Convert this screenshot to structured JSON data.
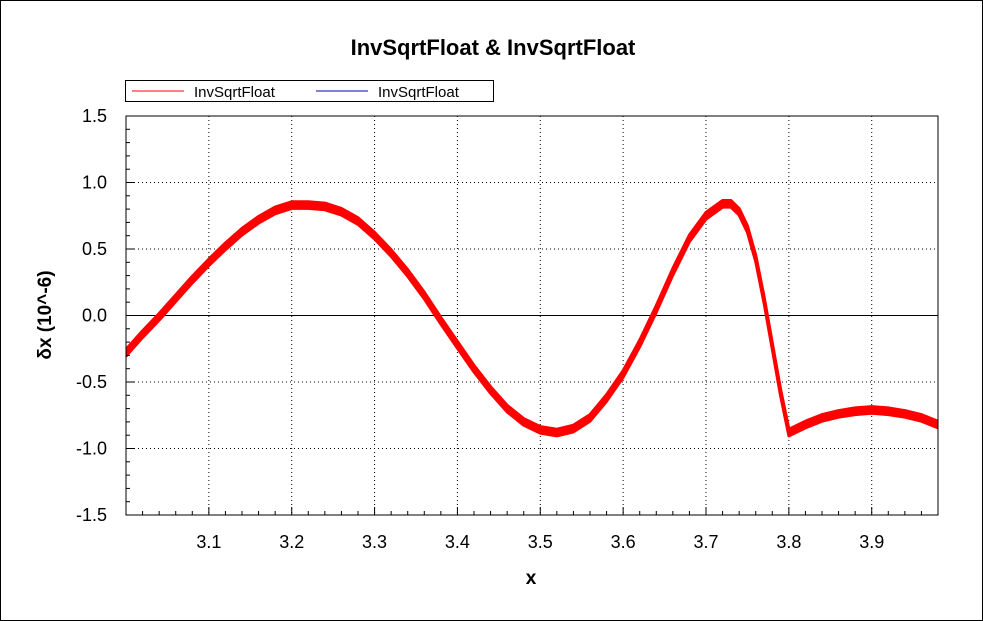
{
  "chart_data": {
    "type": "line",
    "title": "InvSqrtFloat & InvSqrtFloat",
    "xlabel": "x",
    "ylabel": "δx (10^-6)",
    "xlim": [
      3.0,
      3.98
    ],
    "ylim": [
      -1.5,
      1.5
    ],
    "x_ticks": [
      "3.1",
      "3.2",
      "3.3",
      "3.4",
      "3.5",
      "3.6",
      "3.7",
      "3.8",
      "3.9"
    ],
    "y_ticks": [
      "1.5",
      "1.0",
      "0.5",
      "0.0",
      "-0.5",
      "-1.0",
      "-1.5"
    ],
    "grid": true,
    "legend_position": "top-left",
    "series": [
      {
        "name": "InvSqrtFloat",
        "color": "#ff0000",
        "x": [
          3.0,
          3.02,
          3.04,
          3.06,
          3.08,
          3.1,
          3.12,
          3.14,
          3.16,
          3.18,
          3.2,
          3.22,
          3.24,
          3.26,
          3.28,
          3.3,
          3.32,
          3.34,
          3.36,
          3.38,
          3.4,
          3.42,
          3.44,
          3.46,
          3.48,
          3.5,
          3.52,
          3.54,
          3.56,
          3.58,
          3.6,
          3.62,
          3.64,
          3.66,
          3.68,
          3.7,
          3.72,
          3.73,
          3.74,
          3.75,
          3.76,
          3.77,
          3.78,
          3.79,
          3.8,
          3.82,
          3.84,
          3.86,
          3.88,
          3.9,
          3.92,
          3.94,
          3.96,
          3.98
        ],
        "y": [
          -0.28,
          -0.14,
          -0.01,
          0.13,
          0.27,
          0.4,
          0.52,
          0.63,
          0.72,
          0.79,
          0.83,
          0.83,
          0.82,
          0.78,
          0.71,
          0.6,
          0.47,
          0.32,
          0.15,
          -0.04,
          -0.22,
          -0.4,
          -0.56,
          -0.7,
          -0.8,
          -0.86,
          -0.88,
          -0.85,
          -0.77,
          -0.62,
          -0.44,
          -0.21,
          0.05,
          0.33,
          0.58,
          0.75,
          0.84,
          0.84,
          0.78,
          0.65,
          0.43,
          0.12,
          -0.23,
          -0.58,
          -0.88,
          -0.82,
          -0.77,
          -0.74,
          -0.72,
          -0.71,
          -0.72,
          -0.74,
          -0.77,
          -0.82
        ],
        "band_width": 0.05
      },
      {
        "name": "InvSqrtFloat",
        "color": "#0000aa",
        "x": [],
        "y": []
      }
    ]
  }
}
